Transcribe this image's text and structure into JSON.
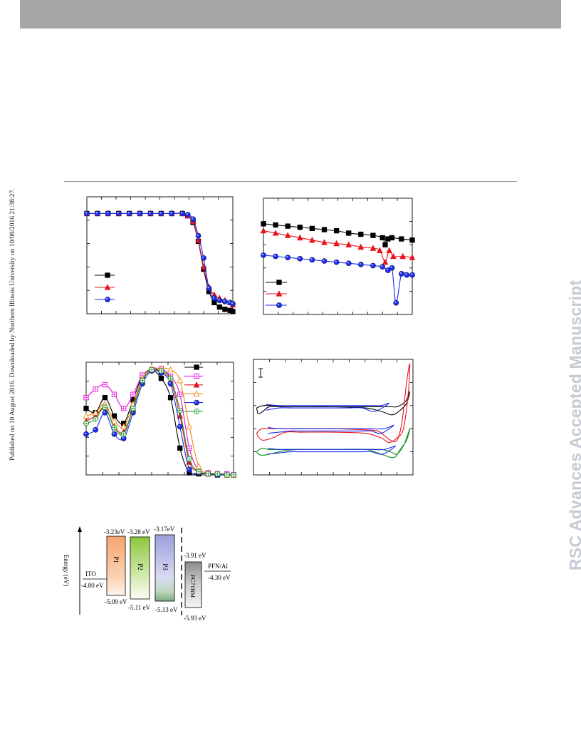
{
  "header": {
    "color": "#a6a6a6"
  },
  "side_note": "Published on 10 August 2016. Downloaded by Northern Illinois University on 10/08/2016 21:38:27.",
  "watermark": "RSC Advances Accepted Manuscript",
  "series_colors": [
    "#000000",
    "#e8141d",
    "#1b2bf0",
    "#e510e0",
    "#f08a10",
    "#109020"
  ],
  "chart_data": [
    {
      "type": "line",
      "panel": "top-left",
      "xlim": [
        0,
        11
      ],
      "ylim": [
        0,
        1.05
      ],
      "legend": "bottom-left",
      "series": [
        {
          "marker": "square",
          "color": "#000000",
          "x": [
            0,
            0.8,
            1.6,
            2.4,
            3.2,
            4,
            4.8,
            5.6,
            6.4,
            7.2,
            7.6,
            8,
            8.4,
            8.8,
            9.2,
            9.6,
            10,
            10.4,
            10.8,
            11
          ],
          "y": [
            0.9,
            0.9,
            0.9,
            0.9,
            0.9,
            0.9,
            0.9,
            0.9,
            0.9,
            0.9,
            0.88,
            0.82,
            0.65,
            0.4,
            0.2,
            0.1,
            0.06,
            0.04,
            0.03,
            0.02
          ]
        },
        {
          "marker": "triangle",
          "color": "#e8141d",
          "x": [
            0,
            0.8,
            1.6,
            2.4,
            3.2,
            4,
            4.8,
            5.6,
            6.4,
            7.2,
            7.6,
            8,
            8.4,
            8.8,
            9.2,
            9.6,
            10,
            10.4,
            10.8,
            11
          ],
          "y": [
            0.9,
            0.9,
            0.9,
            0.9,
            0.9,
            0.9,
            0.9,
            0.9,
            0.9,
            0.9,
            0.88,
            0.83,
            0.66,
            0.42,
            0.24,
            0.17,
            0.14,
            0.12,
            0.1,
            0.08
          ]
        },
        {
          "marker": "circle",
          "color": "#1b2bf0",
          "x": [
            0,
            0.8,
            1.6,
            2.4,
            3.2,
            4,
            4.8,
            5.6,
            6.4,
            7.2,
            7.6,
            8,
            8.4,
            8.8,
            9.2,
            9.6,
            10,
            10.4,
            10.8,
            11
          ],
          "y": [
            0.9,
            0.9,
            0.9,
            0.9,
            0.9,
            0.9,
            0.9,
            0.9,
            0.9,
            0.9,
            0.89,
            0.85,
            0.7,
            0.5,
            0.23,
            0.14,
            0.12,
            0.11,
            0.1,
            0.09
          ]
        }
      ]
    },
    {
      "type": "line",
      "panel": "top-right",
      "xlim": [
        0,
        11
      ],
      "ylim": [
        0,
        1
      ],
      "legend": "bottom-left",
      "series": [
        {
          "marker": "square",
          "color": "#000000",
          "x": [
            0,
            0.9,
            1.8,
            2.7,
            3.6,
            4.5,
            5.4,
            6.3,
            7.2,
            8.1,
            8.8,
            9,
            9.2,
            9.5,
            10.2,
            11
          ],
          "y": [
            0.78,
            0.77,
            0.76,
            0.75,
            0.74,
            0.73,
            0.72,
            0.7,
            0.69,
            0.68,
            0.66,
            0.6,
            0.65,
            0.66,
            0.65,
            0.64
          ]
        },
        {
          "marker": "triangle",
          "color": "#e8141d",
          "x": [
            0,
            0.9,
            1.8,
            2.7,
            3.6,
            4.5,
            5.4,
            6.3,
            7.2,
            8.1,
            8.6,
            9,
            9.3,
            9.6,
            10.3,
            11
          ],
          "y": [
            0.72,
            0.7,
            0.68,
            0.66,
            0.64,
            0.62,
            0.61,
            0.6,
            0.58,
            0.57,
            0.55,
            0.45,
            0.55,
            0.5,
            0.5,
            0.49
          ]
        },
        {
          "marker": "circle",
          "color": "#1b2bf0",
          "x": [
            0,
            0.9,
            1.8,
            2.7,
            3.6,
            4.5,
            5.4,
            6.3,
            7.2,
            8.1,
            8.8,
            9.2,
            9.5,
            9.8,
            10.2,
            10.6,
            11
          ],
          "y": [
            0.51,
            0.5,
            0.49,
            0.48,
            0.47,
            0.46,
            0.45,
            0.44,
            0.43,
            0.42,
            0.41,
            0.38,
            0.4,
            0.1,
            0.35,
            0.34,
            0.34
          ]
        }
      ]
    },
    {
      "type": "line",
      "panel": "middle-left",
      "xlim": [
        0,
        11
      ],
      "ylim": [
        0,
        1.05
      ],
      "legend": "top-right",
      "series": [
        {
          "marker": "square-filled",
          "color": "#000000",
          "x": [
            0,
            0.7,
            1.4,
            2.1,
            2.8,
            3.5,
            4.2,
            4.9,
            5.6,
            6.3,
            7,
            7.7,
            8.4,
            9.1,
            9.8,
            10.5,
            11
          ],
          "y": [
            0.62,
            0.58,
            0.72,
            0.55,
            0.48,
            0.7,
            0.92,
            0.98,
            0.9,
            0.72,
            0.25,
            0.02,
            0.01,
            0.01,
            0.0,
            0.0,
            0.0
          ]
        },
        {
          "marker": "square-open",
          "color": "#e510e0",
          "x": [
            0,
            0.7,
            1.4,
            2.1,
            2.8,
            3.5,
            4.2,
            4.9,
            5.6,
            6.3,
            7,
            7.7,
            8.4,
            9.1,
            9.8,
            10.5,
            11
          ],
          "y": [
            0.72,
            0.8,
            0.84,
            0.75,
            0.62,
            0.75,
            0.93,
            0.98,
            0.99,
            0.92,
            0.75,
            0.25,
            0.04,
            0.02,
            0.01,
            0.01,
            0.0
          ]
        },
        {
          "marker": "triangle-filled",
          "color": "#e8141d",
          "x": [
            0,
            0.7,
            1.4,
            2.1,
            2.8,
            3.5,
            4.2,
            4.9,
            5.6,
            6.3,
            7,
            7.7,
            8.4,
            9.1,
            9.8,
            10.5,
            11
          ],
          "y": [
            0.5,
            0.55,
            0.63,
            0.45,
            0.4,
            0.62,
            0.88,
            0.98,
            0.96,
            0.88,
            0.55,
            0.12,
            0.03,
            0.01,
            0.01,
            0.0,
            0.0
          ]
        },
        {
          "marker": "triangle-open",
          "color": "#f08a10",
          "x": [
            0,
            0.7,
            1.4,
            2.1,
            2.8,
            3.5,
            4.2,
            4.9,
            5.6,
            6.3,
            7,
            7.7,
            8.4,
            9.1,
            9.8,
            10.5,
            11
          ],
          "y": [
            0.55,
            0.58,
            0.66,
            0.5,
            0.45,
            0.66,
            0.9,
            0.99,
            0.99,
            0.98,
            0.88,
            0.45,
            0.08,
            0.02,
            0.01,
            0.0,
            0.0
          ]
        },
        {
          "marker": "circle-filled",
          "color": "#1b2bf0",
          "x": [
            0,
            0.7,
            1.4,
            2.1,
            2.8,
            3.5,
            4.2,
            4.9,
            5.6,
            6.3,
            7,
            7.7,
            8.4,
            9.1,
            9.8,
            10.5,
            11
          ],
          "y": [
            0.38,
            0.42,
            0.58,
            0.38,
            0.34,
            0.58,
            0.85,
            0.97,
            0.95,
            0.85,
            0.45,
            0.05,
            0.02,
            0.01,
            0.0,
            0.0,
            0.0
          ]
        },
        {
          "marker": "circle-cross",
          "color": "#109020",
          "x": [
            0,
            0.7,
            1.4,
            2.1,
            2.8,
            3.5,
            4.2,
            4.9,
            5.6,
            6.3,
            7,
            7.7,
            8.4,
            9.1,
            9.8,
            10.5,
            11
          ],
          "y": [
            0.48,
            0.52,
            0.63,
            0.44,
            0.38,
            0.62,
            0.88,
            0.98,
            0.97,
            0.9,
            0.6,
            0.15,
            0.03,
            0.01,
            0.01,
            0.0,
            0.0
          ]
        }
      ]
    },
    {
      "type": "line",
      "panel": "middle-right",
      "xlim": [
        0,
        10
      ],
      "ylim": [
        0,
        1
      ],
      "legend": "none",
      "series": [
        {
          "color": "#000000",
          "x": [
            0.2,
            0.6,
            1.2,
            2,
            3,
            5,
            7,
            8,
            8.6,
            9,
            9.4,
            9.6,
            9.8,
            9.6,
            9.2,
            8.7,
            8,
            7,
            5,
            3,
            2,
            1,
            0.6,
            0.3,
            0.2
          ],
          "y": [
            0.58,
            0.6,
            0.6,
            0.59,
            0.59,
            0.59,
            0.59,
            0.59,
            0.59,
            0.59,
            0.62,
            0.65,
            0.72,
            0.62,
            0.56,
            0.52,
            0.55,
            0.58,
            0.59,
            0.59,
            0.59,
            0.59,
            0.55,
            0.53,
            0.58
          ]
        },
        {
          "color": "#e8141d",
          "x": [
            0.2,
            0.5,
            1,
            2,
            3,
            5,
            7,
            7.8,
            8.2,
            8.6,
            9,
            9.3,
            9.6,
            9.8,
            9.7,
            9.4,
            9,
            8.5,
            8,
            7,
            5,
            3,
            2,
            1.2,
            0.6,
            0.3,
            0.2
          ],
          "y": [
            0.36,
            0.4,
            0.4,
            0.4,
            0.4,
            0.4,
            0.39,
            0.38,
            0.34,
            0.3,
            0.3,
            0.45,
            0.8,
            0.96,
            0.7,
            0.4,
            0.32,
            0.28,
            0.32,
            0.36,
            0.37,
            0.37,
            0.37,
            0.32,
            0.3,
            0.33,
            0.36
          ]
        },
        {
          "color": "#109020",
          "x": [
            0.2,
            0.5,
            1,
            2,
            3,
            5,
            7,
            8,
            8.6,
            9,
            9.4,
            9.6,
            9.8,
            9.6,
            9.2,
            8.8,
            8,
            7,
            5,
            3,
            2,
            1,
            0.6,
            0.3,
            0.2
          ],
          "y": [
            0.2,
            0.23,
            0.22,
            0.22,
            0.22,
            0.22,
            0.22,
            0.22,
            0.2,
            0.18,
            0.25,
            0.32,
            0.4,
            0.3,
            0.22,
            0.15,
            0.18,
            0.22,
            0.22,
            0.22,
            0.21,
            0.18,
            0.17,
            0.18,
            0.2
          ]
        },
        {
          "color": "#1b2bf0",
          "x": [
            0.8,
            1.6,
            2.3,
            3,
            4,
            5,
            6,
            6.8,
            7.4,
            8,
            8.5,
            7.6,
            6.8,
            6,
            5,
            4,
            3,
            2.3,
            1.6,
            0.8
          ],
          "y": [
            0.61,
            0.6,
            0.6,
            0.6,
            0.6,
            0.6,
            0.6,
            0.6,
            0.6,
            0.6,
            0.62,
            0.55,
            0.58,
            0.58,
            0.58,
            0.58,
            0.58,
            0.58,
            0.58,
            0.56
          ]
        },
        {
          "color": "#1b2bf0",
          "x": [
            0.9,
            1.6,
            2.3,
            3,
            4,
            5,
            6,
            6.8,
            7.4,
            8.2,
            8.8,
            8,
            7.4,
            6.8,
            6,
            5,
            4,
            3,
            2.3,
            1.6,
            0.9
          ],
          "y": [
            0.41,
            0.4,
            0.4,
            0.4,
            0.4,
            0.4,
            0.4,
            0.4,
            0.4,
            0.4,
            0.43,
            0.36,
            0.38,
            0.38,
            0.38,
            0.38,
            0.38,
            0.38,
            0.38,
            0.37,
            0.36
          ]
        },
        {
          "color": "#1b2bf0",
          "x": [
            0.9,
            1.6,
            2.3,
            3,
            4,
            5,
            6,
            6.8,
            7.4,
            8.2,
            8.9,
            8.1,
            7.4,
            6.8,
            6,
            5,
            4,
            3,
            2.3,
            1.6,
            0.9
          ],
          "y": [
            0.23,
            0.22,
            0.22,
            0.22,
            0.22,
            0.22,
            0.22,
            0.22,
            0.22,
            0.22,
            0.25,
            0.18,
            0.2,
            0.2,
            0.2,
            0.2,
            0.2,
            0.2,
            0.2,
            0.19,
            0.18
          ]
        }
      ]
    }
  ],
  "energy_diagram": {
    "axis_label": "Energy (eV)",
    "ito": {
      "label": "ITO",
      "value": "-4.80 eV"
    },
    "pfn": {
      "label": "PFN/Al",
      "value": "-4.30 eV"
    },
    "polymers": [
      {
        "name": "P1",
        "lumo": "-3.23eV",
        "homo": "-5.09 eV",
        "color": "#f6a46e"
      },
      {
        "name": "P2",
        "lumo": "-3.28 eV",
        "homo": "-5.11 eV",
        "color": "#8cc63e"
      },
      {
        "name": "P3",
        "lumo": "-3.17eV",
        "homo": "-5.13 eV",
        "color": "#9b9fdc"
      }
    ],
    "acceptor": {
      "name": "PC71BM",
      "lumo": "-3.91 eV",
      "homo": "-5.93 eV",
      "color": "#8a8a8a"
    }
  }
}
